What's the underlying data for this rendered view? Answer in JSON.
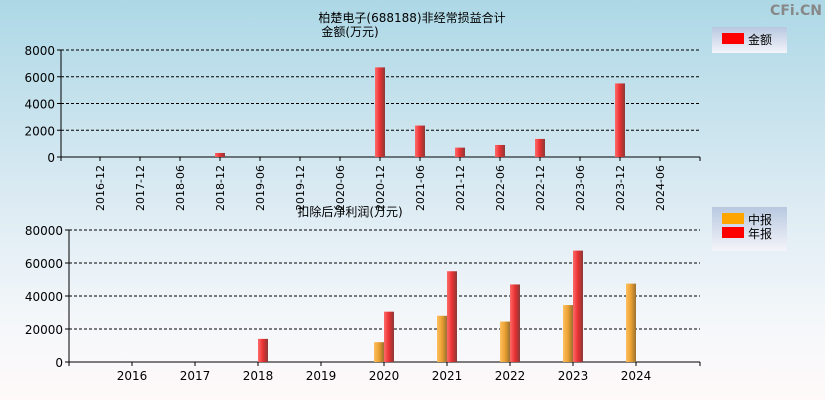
{
  "watermark": "CFi.CN",
  "chart_data": [
    {
      "type": "bar",
      "title": "柏楚电子(688188)非经常损益合计",
      "ylabel": "金额(万元)",
      "categories": [
        "2016-12",
        "2017-12",
        "2018-06",
        "2018-12",
        "2019-06",
        "2019-12",
        "2020-06",
        "2020-12",
        "2021-06",
        "2021-12",
        "2022-06",
        "2022-12",
        "2023-06",
        "2023-12",
        "2024-06"
      ],
      "series": [
        {
          "name": "金额",
          "color": "#ff0000",
          "values": [
            0,
            0,
            0,
            300,
            0,
            0,
            0,
            6700,
            2350,
            700,
            900,
            1350,
            0,
            5500,
            0
          ]
        }
      ],
      "ylim": [
        0,
        8000
      ],
      "yticks": [
        0,
        2000,
        4000,
        6000,
        8000
      ],
      "grid": true,
      "legend": "top-right"
    },
    {
      "type": "bar",
      "title": "扣除后净利润(万元)",
      "categories": [
        "2016",
        "2017",
        "2018",
        "2019",
        "2020",
        "2021",
        "2022",
        "2023",
        "2024"
      ],
      "series": [
        {
          "name": "中报",
          "color": "#ffa500",
          "values": [
            0,
            0,
            0,
            0,
            12000,
            28000,
            24500,
            34500,
            47500
          ]
        },
        {
          "name": "年报",
          "color": "#ff0000",
          "values": [
            0,
            0,
            14000,
            0,
            30500,
            55000,
            47000,
            67500,
            0
          ]
        }
      ],
      "ylim": [
        0,
        80000
      ],
      "yticks": [
        0,
        20000,
        40000,
        60000,
        80000
      ],
      "grid": true,
      "legend": "top-right"
    }
  ]
}
